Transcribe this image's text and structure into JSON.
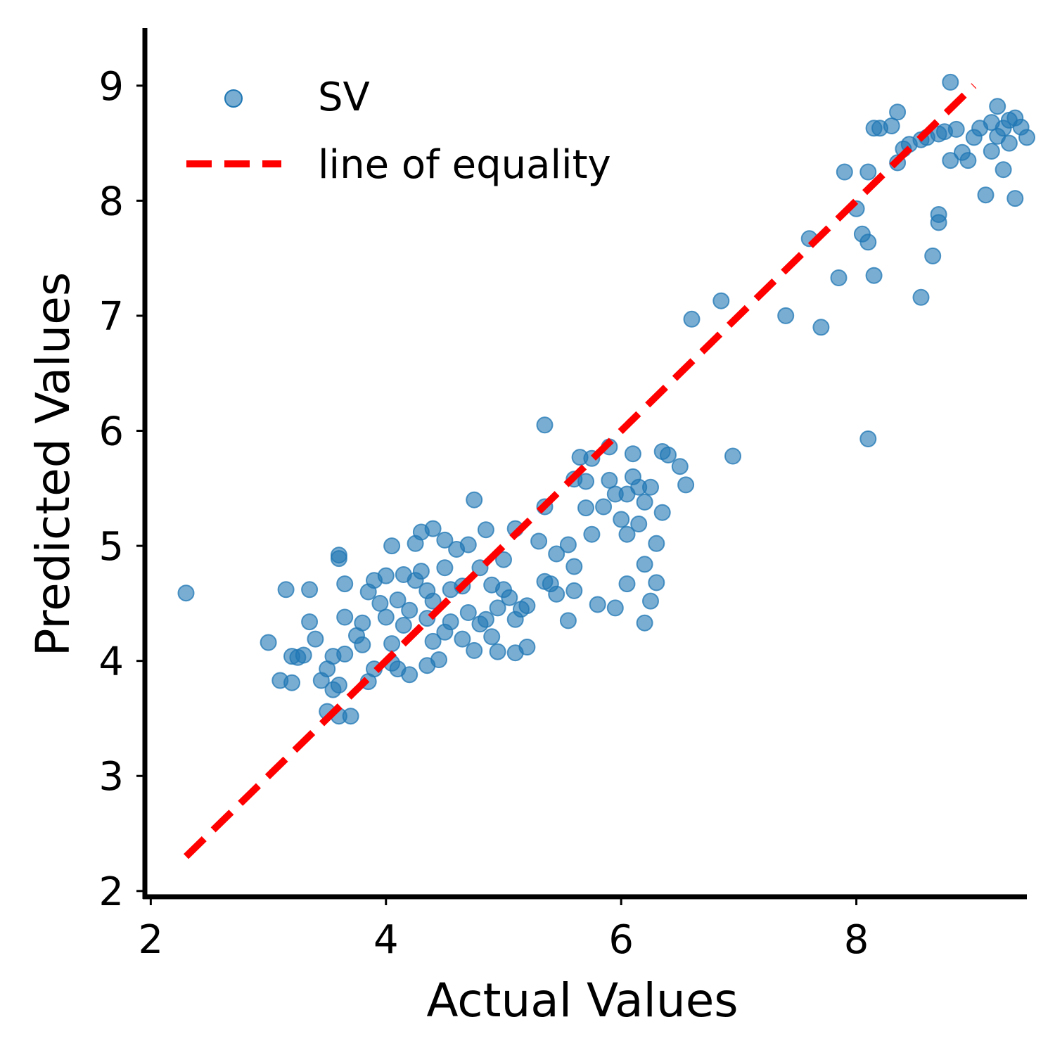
{
  "chart_data": {
    "type": "scatter",
    "title": "",
    "xlabel": "Actual Values",
    "ylabel": "Predicted Values",
    "xlim": [
      1.95,
      9.45
    ],
    "ylim": [
      1.95,
      9.5
    ],
    "xticks": [
      2,
      4,
      6,
      8
    ],
    "yticks": [
      2,
      3,
      4,
      5,
      6,
      7,
      8,
      9
    ],
    "grid": false,
    "legend_position": "top-left",
    "series": [
      {
        "name": "SV",
        "kind": "scatter",
        "color": "#1f77b4",
        "alpha": 0.6,
        "points": [
          [
            2.3,
            4.59
          ],
          [
            3.0,
            4.16
          ],
          [
            3.1,
            3.83
          ],
          [
            3.15,
            4.62
          ],
          [
            3.2,
            4.04
          ],
          [
            3.25,
            4.03
          ],
          [
            3.3,
            4.05
          ],
          [
            3.35,
            4.34
          ],
          [
            3.35,
            4.62
          ],
          [
            3.4,
            4.19
          ],
          [
            3.45,
            3.83
          ],
          [
            3.2,
            3.81
          ],
          [
            3.5,
            3.93
          ],
          [
            3.55,
            3.75
          ],
          [
            3.6,
            3.79
          ],
          [
            3.55,
            4.04
          ],
          [
            3.6,
            4.89
          ],
          [
            3.6,
            4.92
          ],
          [
            3.65,
            4.67
          ],
          [
            3.65,
            4.38
          ],
          [
            3.65,
            4.06
          ],
          [
            3.7,
            3.52
          ],
          [
            3.6,
            3.52
          ],
          [
            3.5,
            3.56
          ],
          [
            3.75,
            4.22
          ],
          [
            3.8,
            4.14
          ],
          [
            3.8,
            4.33
          ],
          [
            3.85,
            4.6
          ],
          [
            3.9,
            4.7
          ],
          [
            3.9,
            3.93
          ],
          [
            3.85,
            3.82
          ],
          [
            3.95,
            4.5
          ],
          [
            4.0,
            4.74
          ],
          [
            4.0,
            4.38
          ],
          [
            4.05,
            4.15
          ],
          [
            4.05,
            3.98
          ],
          [
            4.05,
            5.0
          ],
          [
            4.1,
            4.53
          ],
          [
            4.1,
            3.93
          ],
          [
            4.15,
            4.75
          ],
          [
            4.15,
            4.31
          ],
          [
            4.2,
            4.44
          ],
          [
            4.2,
            3.88
          ],
          [
            4.25,
            4.7
          ],
          [
            4.25,
            5.02
          ],
          [
            4.3,
            4.78
          ],
          [
            4.3,
            5.12
          ],
          [
            4.35,
            4.61
          ],
          [
            4.35,
            4.37
          ],
          [
            4.35,
            3.96
          ],
          [
            4.4,
            5.15
          ],
          [
            4.4,
            4.52
          ],
          [
            4.4,
            4.17
          ],
          [
            4.45,
            4.01
          ],
          [
            4.5,
            4.81
          ],
          [
            4.5,
            5.05
          ],
          [
            4.5,
            4.25
          ],
          [
            4.55,
            4.62
          ],
          [
            4.55,
            4.34
          ],
          [
            4.6,
            4.97
          ],
          [
            4.65,
            4.65
          ],
          [
            4.65,
            4.19
          ],
          [
            4.7,
            4.42
          ],
          [
            4.7,
            5.01
          ],
          [
            4.75,
            5.4
          ],
          [
            4.75,
            4.09
          ],
          [
            4.8,
            4.32
          ],
          [
            4.8,
            4.81
          ],
          [
            4.85,
            4.36
          ],
          [
            4.85,
            5.14
          ],
          [
            4.9,
            4.66
          ],
          [
            4.9,
            4.21
          ],
          [
            4.95,
            4.46
          ],
          [
            4.95,
            4.08
          ],
          [
            5.0,
            4.62
          ],
          [
            5.0,
            4.88
          ],
          [
            5.05,
            4.55
          ],
          [
            5.1,
            4.36
          ],
          [
            5.1,
            5.15
          ],
          [
            5.1,
            4.07
          ],
          [
            5.15,
            4.45
          ],
          [
            5.2,
            4.12
          ],
          [
            5.2,
            4.48
          ],
          [
            5.3,
            5.04
          ],
          [
            5.35,
            4.69
          ],
          [
            5.35,
            5.34
          ],
          [
            5.4,
            4.67
          ],
          [
            5.45,
            4.93
          ],
          [
            5.45,
            4.58
          ],
          [
            5.55,
            4.35
          ],
          [
            5.55,
            5.01
          ],
          [
            5.6,
            4.82
          ],
          [
            5.6,
            4.61
          ],
          [
            5.6,
            5.58
          ],
          [
            5.65,
            5.77
          ],
          [
            5.7,
            5.56
          ],
          [
            5.7,
            5.33
          ],
          [
            5.75,
            5.76
          ],
          [
            5.75,
            5.1
          ],
          [
            5.8,
            4.49
          ],
          [
            5.85,
            5.34
          ],
          [
            5.9,
            5.86
          ],
          [
            5.9,
            5.57
          ],
          [
            5.95,
            4.46
          ],
          [
            5.95,
            5.45
          ],
          [
            6.0,
            5.23
          ],
          [
            6.05,
            5.1
          ],
          [
            6.05,
            5.45
          ],
          [
            6.05,
            4.67
          ],
          [
            6.1,
            5.6
          ],
          [
            6.1,
            5.8
          ],
          [
            6.15,
            5.51
          ],
          [
            6.15,
            5.19
          ],
          [
            6.2,
            5.38
          ],
          [
            6.2,
            4.84
          ],
          [
            6.2,
            4.33
          ],
          [
            6.25,
            5.51
          ],
          [
            6.25,
            4.52
          ],
          [
            6.3,
            5.02
          ],
          [
            6.3,
            4.68
          ],
          [
            6.35,
            5.29
          ],
          [
            6.35,
            5.82
          ],
          [
            6.4,
            5.79
          ],
          [
            6.5,
            5.69
          ],
          [
            6.55,
            5.53
          ],
          [
            5.35,
            6.05
          ],
          [
            6.6,
            6.97
          ],
          [
            6.85,
            7.13
          ],
          [
            6.95,
            5.78
          ],
          [
            7.4,
            7.0
          ],
          [
            7.6,
            7.67
          ],
          [
            7.7,
            6.9
          ],
          [
            7.85,
            7.33
          ],
          [
            7.9,
            8.25
          ],
          [
            8.0,
            7.93
          ],
          [
            8.05,
            7.71
          ],
          [
            8.1,
            8.25
          ],
          [
            8.1,
            7.64
          ],
          [
            8.1,
            5.93
          ],
          [
            8.15,
            7.35
          ],
          [
            8.15,
            8.63
          ],
          [
            8.2,
            8.63
          ],
          [
            8.3,
            8.65
          ],
          [
            8.35,
            8.33
          ],
          [
            8.35,
            8.77
          ],
          [
            8.4,
            8.45
          ],
          [
            8.45,
            8.49
          ],
          [
            8.55,
            7.16
          ],
          [
            8.55,
            8.53
          ],
          [
            8.6,
            8.55
          ],
          [
            8.65,
            7.52
          ],
          [
            8.7,
            7.88
          ],
          [
            8.7,
            7.81
          ],
          [
            8.7,
            8.58
          ],
          [
            8.75,
            8.6
          ],
          [
            8.8,
            8.35
          ],
          [
            8.8,
            9.03
          ],
          [
            8.85,
            8.62
          ],
          [
            8.9,
            8.42
          ],
          [
            8.95,
            8.35
          ],
          [
            9.0,
            8.55
          ],
          [
            9.05,
            8.63
          ],
          [
            9.1,
            8.05
          ],
          [
            9.15,
            8.43
          ],
          [
            9.15,
            8.68
          ],
          [
            9.2,
            8.56
          ],
          [
            9.2,
            8.82
          ],
          [
            9.25,
            8.63
          ],
          [
            9.25,
            8.27
          ],
          [
            9.3,
            8.5
          ],
          [
            9.3,
            8.7
          ],
          [
            9.35,
            8.72
          ],
          [
            9.35,
            8.02
          ],
          [
            9.4,
            8.64
          ],
          [
            9.45,
            8.55
          ]
        ]
      },
      {
        "name": "line of equality",
        "kind": "line",
        "style": "dashed",
        "color": "#ff0000",
        "points": [
          [
            2.3,
            2.3
          ],
          [
            9.0,
            9.0
          ]
        ]
      }
    ]
  }
}
